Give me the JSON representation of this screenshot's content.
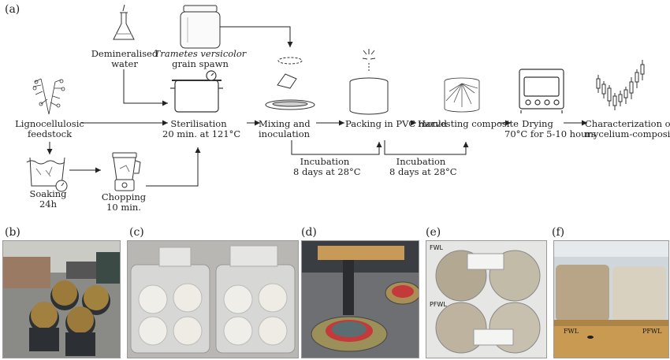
{
  "panels": {
    "a": "(a)",
    "b": "(b)",
    "c": "(c)",
    "d": "(d)",
    "e": "(e)",
    "f": "(f)"
  },
  "steps": {
    "water": [
      "Demineralised",
      "water"
    ],
    "spawn_species": "Trametes versicolor",
    "spawn_rest": "grain spawn",
    "feedstock": [
      "Lignocellulosic",
      "feedstock"
    ],
    "sterilisation": [
      "Sterilisation",
      "20 min. at 121°C"
    ],
    "mixing": [
      "Mixing and",
      "inoculation"
    ],
    "packing": "Packing in PVC mould",
    "harvesting": "Harvesting composite",
    "drying": [
      "Drying",
      "70°C for 5-10 hours"
    ],
    "characterization": [
      "Characterization of",
      "mycelium-composites"
    ],
    "soaking": [
      "Soaking",
      "24h"
    ],
    "chopping": [
      "Chopping",
      "10 min."
    ],
    "incubation1": [
      "Incubation",
      "8 days at 28°C"
    ],
    "incubation2": [
      "Incubation",
      "8 days at 28°C"
    ]
  },
  "photo_labels": {
    "fwl_e": "FWL",
    "pfwl_e": "PFWL",
    "fwl_f": "FWL",
    "pfwl_f": "PFWL"
  },
  "icons": [
    "flask-icon",
    "jar-icon",
    "plant-icon",
    "pot-icon",
    "mixing-icon",
    "mould-icon",
    "harvest-icon",
    "oven-icon",
    "candlestick-icon",
    "soaking-icon",
    "blender-icon"
  ]
}
